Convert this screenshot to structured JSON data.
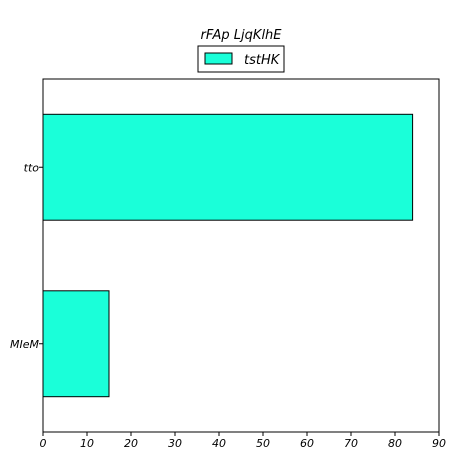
{
  "chart_data": {
    "type": "bar",
    "orientation": "horizontal",
    "title": "rFAp LjqKlhE",
    "xlabel": "",
    "ylabel": "",
    "categories": [
      "tto",
      "MIeM"
    ],
    "series": [
      {
        "name": "tstHK",
        "values": [
          84,
          15
        ],
        "color": "#1affd9"
      }
    ],
    "xlim": [
      0,
      90
    ],
    "xticks": [
      0,
      10,
      20,
      30,
      40,
      50,
      60,
      70,
      80,
      90
    ],
    "grid": false,
    "legend": "top-center"
  }
}
